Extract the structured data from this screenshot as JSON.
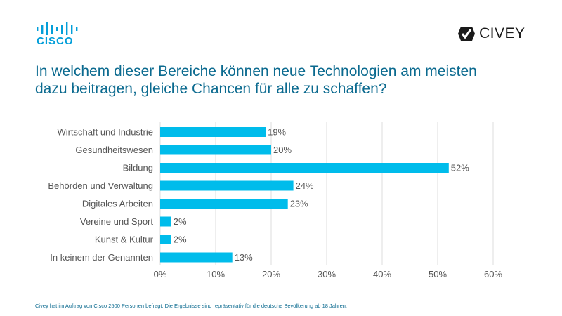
{
  "brand": {
    "left_logo_text": "CISCO",
    "right_logo_text": "CIVEY",
    "left_logo_icon": "cisco-bridge-icon",
    "right_logo_icon": "civey-check-icon"
  },
  "headline": "In welchem dieser Bereiche können neue Technologien am meisten\ndazu beitragen, gleiche Chancen für alle zu schaffen?",
  "footnote": "Civey hat im Auftrag von Cisco 2500 Personen befragt. Die Ergebnisse sind repräsentativ für die deutsche Bevölkerung ab 18 Jahren.",
  "colors": {
    "bar": "#00bceb",
    "headline": "#0b6a8f",
    "cisco": "#049fd9",
    "grid": "#dcdcdc",
    "label": "#555555"
  },
  "chart_data": {
    "type": "bar",
    "orientation": "horizontal",
    "title": "In welchem dieser Bereiche können neue Technologien am meisten dazu beitragen, gleiche Chancen für alle zu schaffen?",
    "categories": [
      "Wirtschaft und Industrie",
      "Gesundheitswesen",
      "Bildung",
      "Behörden und Verwaltung",
      "Digitales Arbeiten",
      "Vereine und Sport",
      "Kunst & Kultur",
      "In keinem der Genannten"
    ],
    "values": [
      19,
      20,
      52,
      24,
      23,
      2,
      2,
      13
    ],
    "value_labels": [
      "19%",
      "20%",
      "52%",
      "24%",
      "23%",
      "2%",
      "2%",
      "13%"
    ],
    "xlim": [
      0,
      60
    ],
    "xticks": [
      0,
      10,
      20,
      30,
      40,
      50,
      60
    ],
    "xtick_labels": [
      "0%",
      "10%",
      "20%",
      "30%",
      "40%",
      "50%",
      "60%"
    ],
    "xlabel": "",
    "ylabel": "",
    "grid": true,
    "legend": "none"
  }
}
